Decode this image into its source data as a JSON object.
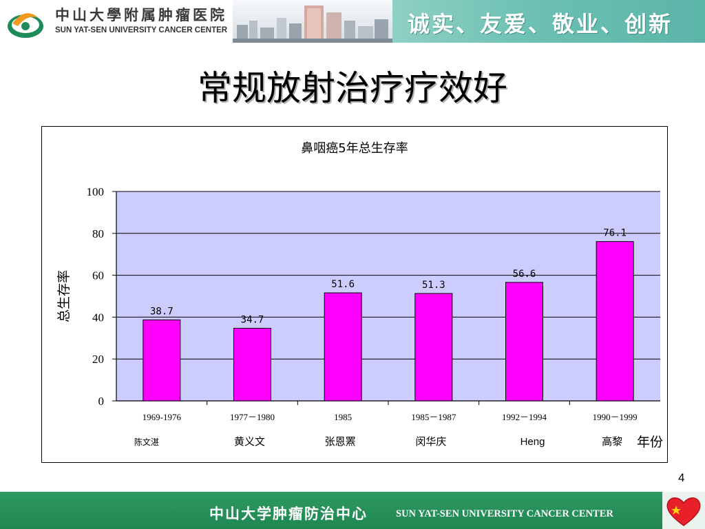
{
  "header": {
    "logo_cn": "中山大學附属肿瘤医院",
    "logo_en": "SUN YAT-SEN UNIVERSITY CANCER CENTER",
    "motto": "诚实、友爱、敬业、创新"
  },
  "slide": {
    "title": "常规放射治疗疗效好",
    "page_number": "4"
  },
  "footer": {
    "cn": "中山大学肿瘤防治中心",
    "en": "SUN YAT-SEN UNIVERSITY CANCER CENTER"
  },
  "colors": {
    "plot_background": "#ccccff",
    "bar_fill": "#ff00ff",
    "footer_green": "#1f8650",
    "motto_band": "#6cc0b3"
  },
  "chart_data": {
    "type": "bar",
    "title": "鼻咽癌5年总生存率",
    "ylabel": "总生存率",
    "xlabel": "年份",
    "ylim": [
      0,
      100
    ],
    "yticks": [
      0,
      20,
      40,
      60,
      80,
      100
    ],
    "categories": [
      "1969-1976",
      "1977－1980",
      "1985",
      "1985－1987",
      "1992－1994",
      "1990－1999"
    ],
    "authors": [
      "陈文湛",
      "黄义文",
      "张恩罴",
      "闵华庆",
      "Heng",
      "高黎"
    ],
    "values": [
      38.7,
      34.7,
      51.6,
      51.3,
      56.6,
      76.1
    ],
    "value_labels": [
      "38.7",
      "34.7",
      "51.6",
      "51.3",
      "56.6",
      "76.1"
    ],
    "grid": true,
    "legend": "none"
  }
}
